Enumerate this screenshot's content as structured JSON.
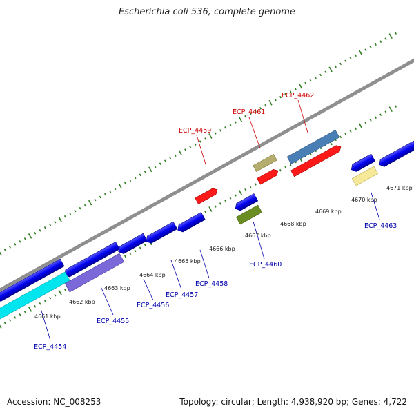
{
  "title": "Escherichia coli 536, complete genome",
  "footer": {
    "accession": "Accession: NC_008253",
    "summary": "Topology: circular; Length: 4,938,920 bp; Genes: 4,722"
  },
  "map": {
    "kbp_labels": [
      "4661 kbp",
      "4662 kbp",
      "4663 kbp",
      "4664 kbp",
      "4665 kbp",
      "4666 kbp",
      "4667 kbp",
      "4668 kbp",
      "4669 kbp",
      "4670 kbp",
      "4671 kbp"
    ],
    "colors": {
      "backbone": "#8f8f8f",
      "ticks": "#2e7d1f",
      "forward_label": "#cc0000",
      "reverse_label": "#0000aa"
    },
    "genes": [
      {
        "name": "ECP_4459",
        "color": "#ff1a1a",
        "strand": "forward"
      },
      {
        "name": "ECP_4461",
        "color": "#ff1a1a",
        "strand": "forward"
      },
      {
        "name": "ECP_4462",
        "color": "#4a7fb5",
        "strand": "forward"
      },
      {
        "name": "ECP_4454",
        "color": "#00e5ee",
        "strand": "reverse"
      },
      {
        "name": "ECP_4455",
        "color": "#7b68d9",
        "strand": "reverse"
      },
      {
        "name": "ECP_4456",
        "color": "#0000ee",
        "strand": "reverse"
      },
      {
        "name": "ECP_4457",
        "color": "#0000ee",
        "strand": "reverse"
      },
      {
        "name": "ECP_4458",
        "color": "#0000ee",
        "strand": "reverse"
      },
      {
        "name": "ECP_4460",
        "color": "#6b8e23",
        "strand": "reverse"
      },
      {
        "name": "ECP_4463",
        "color": "#f0e68c",
        "strand": "reverse"
      }
    ]
  }
}
